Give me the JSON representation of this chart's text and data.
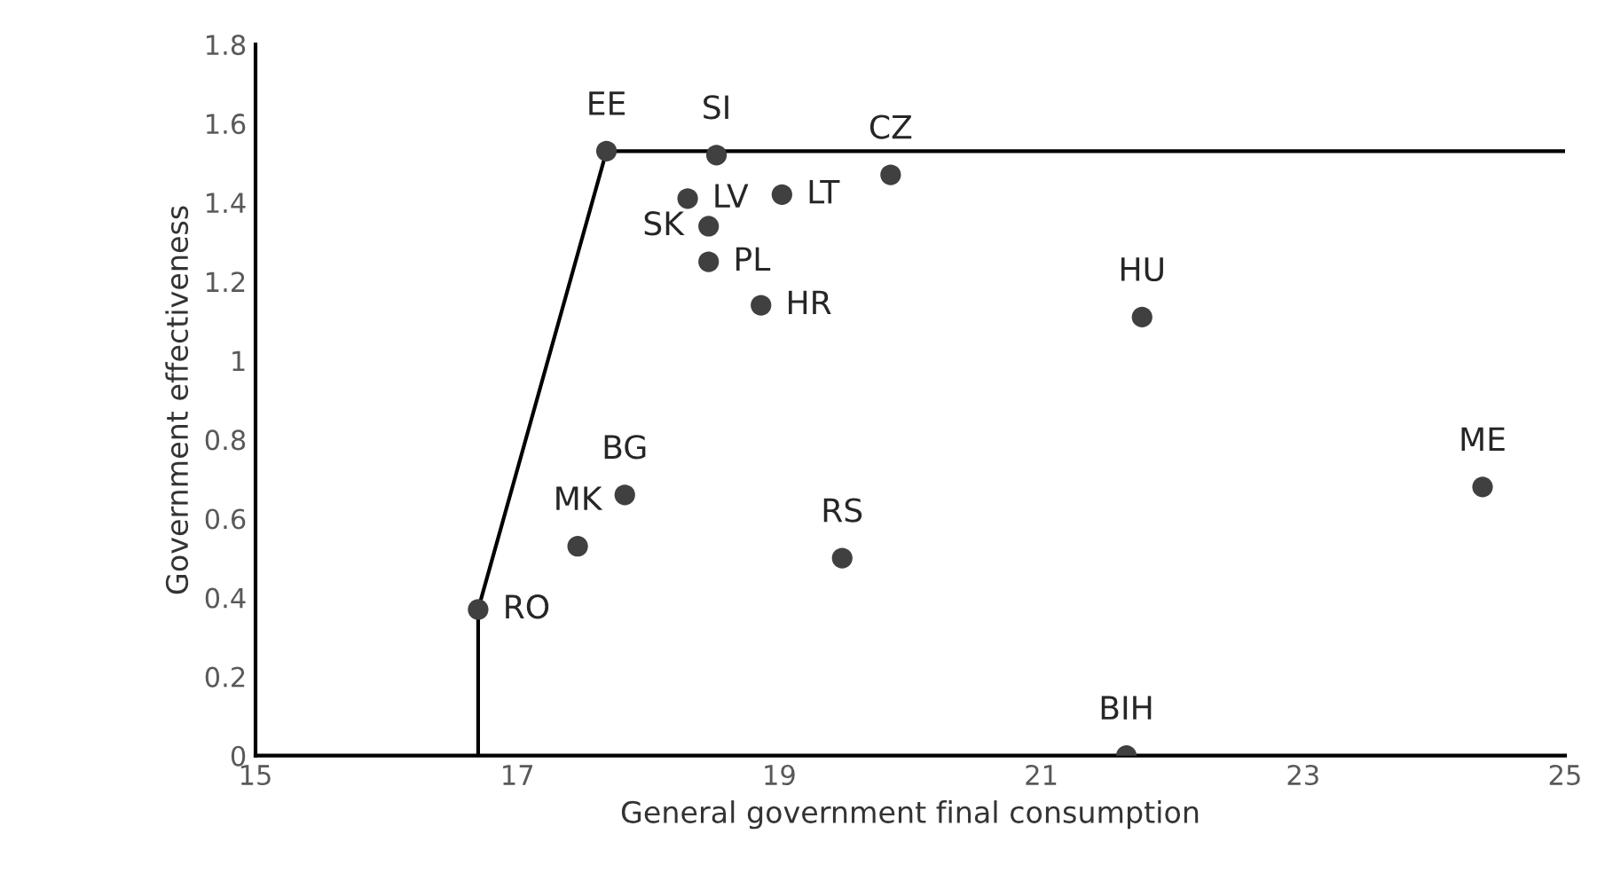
{
  "chart_data": {
    "type": "scatter",
    "xlabel": "General government final consumption",
    "ylabel": "Government effectiveness",
    "xlim": [
      15,
      25
    ],
    "xticks": [
      15,
      17,
      19,
      21,
      23,
      25
    ],
    "ylim": [
      0,
      1.8
    ],
    "yticks": [
      0,
      0.2,
      0.4,
      0.6,
      0.8,
      1,
      1.2,
      1.4,
      1.6,
      1.8
    ],
    "grid": false,
    "legend": false,
    "marker": "circle",
    "series": [
      {
        "color": "#404040",
        "x": [
          17.68,
          18.52,
          18.3,
          18.46,
          18.46,
          19.02,
          18.86,
          19.85,
          21.77,
          24.37,
          21.65,
          16.7,
          17.46,
          17.82,
          19.48
        ],
        "values": [
          1.53,
          1.52,
          1.41,
          1.34,
          1.25,
          1.42,
          1.14,
          1.47,
          1.11,
          0.68,
          0,
          0.37,
          0.53,
          0.66,
          0.5
        ]
      },
      {
        "type": "line",
        "color": "#000000",
        "marker": "none",
        "line_style": "solid",
        "x": [
          16.7,
          16.7,
          17.68,
          25
        ],
        "values": [
          0,
          0.37,
          1.53,
          1.53
        ]
      }
    ],
    "annotations": [
      {
        "text": "EE",
        "x": 17.68,
        "y": 1.53
      },
      {
        "text": "SI",
        "x": 18.52,
        "y": 1.52
      },
      {
        "text": "LV",
        "x": 18.3,
        "y": 1.41
      },
      {
        "text": "SK",
        "x": 18.46,
        "y": 1.34
      },
      {
        "text": "PL",
        "x": 18.46,
        "y": 1.25
      },
      {
        "text": "LT",
        "x": 19.02,
        "y": 1.42
      },
      {
        "text": "HR",
        "x": 18.86,
        "y": 1.14
      },
      {
        "text": "CZ",
        "x": 19.85,
        "y": 1.47
      },
      {
        "text": "HU",
        "x": 21.77,
        "y": 1.11
      },
      {
        "text": "ME",
        "x": 24.37,
        "y": 0.68
      },
      {
        "text": "BIH",
        "x": 21.65,
        "y": 0
      },
      {
        "text": "RO",
        "x": 16.7,
        "y": 0.37
      },
      {
        "text": "MK",
        "x": 17.46,
        "y": 0.53
      },
      {
        "text": "BG",
        "x": 17.82,
        "y": 0.66
      },
      {
        "text": "RS",
        "x": 19.48,
        "y": 0.5
      }
    ]
  }
}
